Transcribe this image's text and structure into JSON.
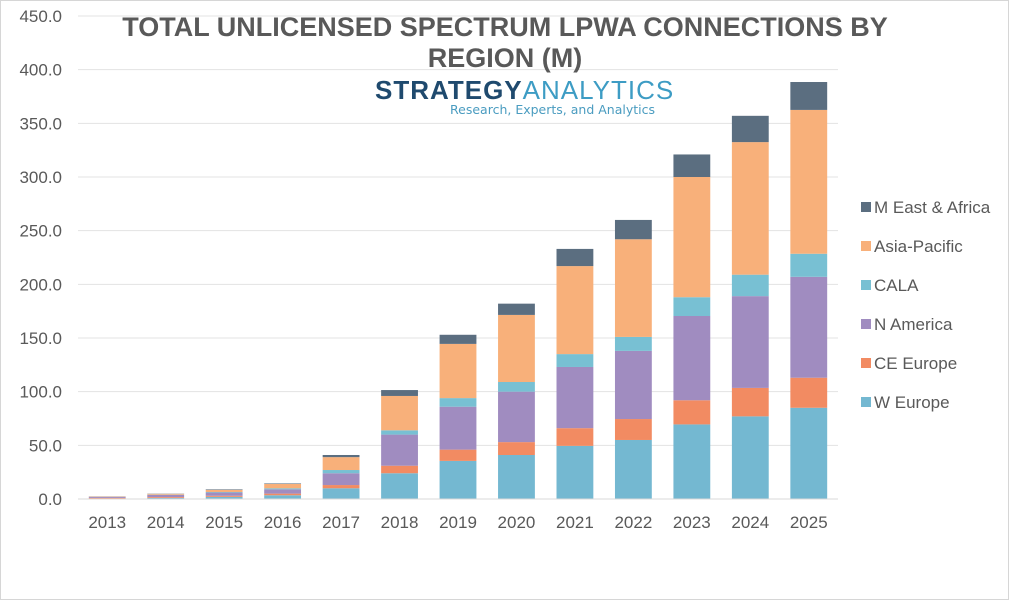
{
  "chart_data": {
    "type": "bar",
    "stacked": true,
    "title": "TOTAL UNLICENSED SPECTRUM LPWA CONNECTIONS BY REGION (M)",
    "title_lines": [
      "TOTAL UNLICENSED SPECTRUM LPWA CONNECTIONS BY",
      "REGION (M)"
    ],
    "xlabel": "",
    "ylabel": "",
    "ylim": [
      0,
      450
    ],
    "y_ticks": [
      0,
      50,
      100,
      150,
      200,
      250,
      300,
      350,
      400,
      450
    ],
    "y_tick_labels": [
      "0.0",
      "50.0",
      "100.0",
      "150.0",
      "200.0",
      "250.0",
      "300.0",
      "350.0",
      "400.0",
      "450.0"
    ],
    "grid": true,
    "legend_position": "right",
    "categories": [
      "2013",
      "2014",
      "2015",
      "2016",
      "2017",
      "2018",
      "2019",
      "2020",
      "2021",
      "2022",
      "2023",
      "2024",
      "2025"
    ],
    "series": [
      {
        "name": "W Europe",
        "color": "#74b8d1",
        "values": [
          0.5,
          1.0,
          2.0,
          3.5,
          10,
          24,
          35.5,
          41,
          49.5,
          55,
          69.5,
          77,
          85
        ]
      },
      {
        "name": "CE Europe",
        "color": "#f28b62",
        "values": [
          0.5,
          0.8,
          1.0,
          1.5,
          3,
          7,
          10.5,
          12,
          16.5,
          19.5,
          22.5,
          26.5,
          28
        ]
      },
      {
        "name": "N America",
        "color": "#a08cc0",
        "values": [
          1.0,
          2.0,
          3.0,
          4.0,
          11,
          29,
          40,
          47,
          57,
          63.5,
          78.5,
          85.5,
          94
        ]
      },
      {
        "name": "CALA",
        "color": "#78c0d3",
        "values": [
          0.1,
          0.2,
          0.5,
          1.0,
          3,
          4,
          8,
          9,
          12,
          13,
          17.5,
          20,
          21.5
        ]
      },
      {
        "name": "Asia-Pacific",
        "color": "#f8b07a",
        "values": [
          0.3,
          0.8,
          2.0,
          4.0,
          12,
          32,
          50.5,
          62.5,
          82,
          91,
          112,
          123.5,
          134
        ]
      },
      {
        "name": "M East & Africa",
        "color": "#5b6e80",
        "values": [
          0.1,
          0.2,
          0.5,
          0.5,
          2,
          5.5,
          8.5,
          10.5,
          16,
          18,
          21,
          24.5,
          26
        ]
      }
    ],
    "legend_order": [
      "M East & Africa",
      "Asia-Pacific",
      "CALA",
      "N America",
      "CE Europe",
      "W Europe"
    ]
  },
  "logo": {
    "brand_part1": "STRATEGY",
    "brand_part2": "ANALYTICS",
    "tagline": "Research, Experts, and Analytics",
    "color_dark": "#1f4a6e",
    "color_light": "#3d9cc4"
  }
}
